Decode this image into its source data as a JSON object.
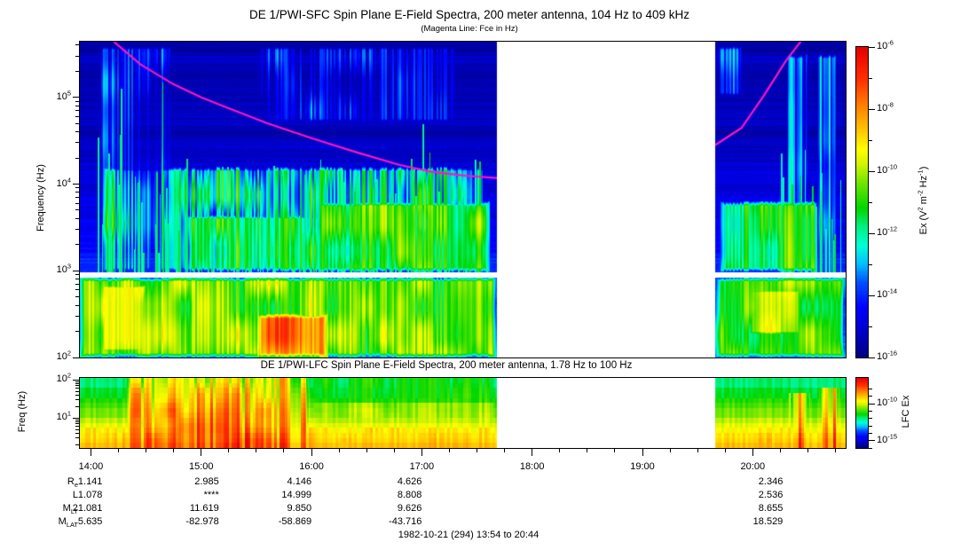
{
  "header": {
    "title": "DE 1/PWI-SFC  Spin Plane E-Field Spectra, 200 meter antenna, 104 Hz to 409 kHz",
    "subtitle": "(Magenta Line: Fce in Hz)"
  },
  "footer": {
    "date_range": "1982-10-21 (294) 13:54 to 20:44"
  },
  "xaxis": {
    "start_hour": 13.9,
    "end_hour": 20.842,
    "first_hour": 14,
    "hour_labels": [
      "14:00",
      "15:00",
      "16:00",
      "17:00",
      "18:00",
      "19:00",
      "20:00"
    ],
    "minor_tick_hours": 0.25
  },
  "ephemeris": {
    "row_labels": [
      {
        "main": "R",
        "sub": "e"
      },
      {
        "main": "L",
        "sub": ""
      },
      {
        "main": "M",
        "sub": "LT"
      },
      {
        "main": "M",
        "sub": "LAT"
      }
    ],
    "rows": [
      [
        "1.141",
        "2.985",
        "4.146",
        "4.626",
        "",
        "",
        "2.346"
      ],
      [
        "1.078",
        "****",
        "14.999",
        "8.808",
        "",
        "",
        "2.536"
      ],
      [
        "21.081",
        "11.619",
        "9.850",
        "9.626",
        "",
        "",
        "8.655"
      ],
      [
        "5.635",
        "-82.978",
        "-58.869",
        "-43.716",
        "",
        "",
        "18.529"
      ]
    ]
  },
  "colors": {
    "magenta": "#ff14c8",
    "frame": "#000000",
    "background": "#ffffff",
    "colormap_stops": [
      [
        0.0,
        0,
        0,
        130
      ],
      [
        0.08,
        0,
        0,
        200
      ],
      [
        0.16,
        0,
        0,
        255
      ],
      [
        0.24,
        0,
        80,
        255
      ],
      [
        0.3,
        0,
        190,
        255
      ],
      [
        0.36,
        0,
        255,
        215
      ],
      [
        0.42,
        0,
        240,
        130
      ],
      [
        0.48,
        0,
        215,
        0
      ],
      [
        0.56,
        110,
        230,
        0
      ],
      [
        0.63,
        220,
        245,
        0
      ],
      [
        0.67,
        255,
        255,
        0
      ],
      [
        0.74,
        255,
        190,
        0
      ],
      [
        0.82,
        255,
        120,
        0
      ],
      [
        0.9,
        255,
        45,
        0
      ],
      [
        1.0,
        230,
        0,
        0
      ]
    ]
  },
  "chart_data": [
    {
      "id": "sfc",
      "type": "heatmap",
      "title": "DE 1/PWI-SFC  Spin Plane E-Field Spectra, 200 meter antenna, 104 Hz to 409 kHz",
      "subtitle": "(Magenta Line: Fce in Hz)",
      "ylabel": "Frequency (Hz)",
      "freq_range": "104 Hz to 409 kHz",
      "ylog_range": [
        2.0,
        5.642
      ],
      "yticks": [
        {
          "log": 2,
          "label": "10^2"
        },
        {
          "log": 3,
          "label": "10^3"
        },
        {
          "log": 4,
          "label": "10^4"
        },
        {
          "log": 5,
          "label": "10^5"
        }
      ],
      "data_gap_hours": [
        17.68,
        19.66
      ],
      "white_band_log_hz": [
        2.925,
        2.985
      ],
      "colorbar": {
        "label": "Ex (V^2 m^-2 Hz^-1)",
        "range_log10": [
          -16,
          -6
        ],
        "ticks": [
          {
            "log": -6,
            "label": "10^-6"
          },
          {
            "log": -8,
            "label": "10^-8"
          },
          {
            "log": -10,
            "label": "10^-10"
          },
          {
            "log": -12,
            "label": "10^-12"
          },
          {
            "log": -14,
            "label": "10^-14"
          },
          {
            "log": -16,
            "label": "10^-16"
          }
        ],
        "minor_logs": [
          -7,
          -9,
          -11,
          -13,
          -15
        ]
      },
      "fce_line": {
        "name": "Fce",
        "color": "#ff14c8",
        "segments": [
          [
            [
              14.21,
              5.64
            ],
            [
              14.45,
              5.38
            ],
            [
              14.75,
              5.15
            ],
            [
              15.0,
              5.0
            ],
            [
              15.3,
              4.85
            ],
            [
              15.6,
              4.7
            ],
            [
              16.0,
              4.53
            ],
            [
              16.4,
              4.37
            ],
            [
              16.8,
              4.22
            ],
            [
              17.1,
              4.14
            ],
            [
              17.4,
              4.095
            ],
            [
              17.68,
              4.07
            ]
          ],
          [
            [
              19.66,
              4.45
            ],
            [
              19.9,
              4.65
            ],
            [
              20.1,
              5.02
            ],
            [
              20.3,
              5.42
            ],
            [
              20.45,
              5.67
            ]
          ]
        ]
      },
      "base_profile": [
        [
          2.0,
          -13.4
        ],
        [
          3.0,
          -14.0
        ],
        [
          3.6,
          -14.7
        ],
        [
          4.6,
          -15.35
        ],
        [
          5.642,
          -15.45
        ]
      ],
      "features": [
        {
          "name": "low-band-left",
          "t": [
            13.9,
            17.68
          ],
          "lf": [
            2.0,
            2.925
          ],
          "v": -10.4,
          "patch": 1.0,
          "stria": 0.7
        },
        {
          "name": "low-band-early-hot",
          "t": [
            14.08,
            14.52
          ],
          "lf": [
            2.05,
            2.85
          ],
          "v": -9.5,
          "patch": 0.7,
          "stria": 0.4
        },
        {
          "name": "low-band-hot-core",
          "t": [
            15.5,
            16.15
          ],
          "lf": [
            2.0,
            2.5
          ],
          "v": -7.9,
          "patch": 0.9,
          "stria": 0.6
        },
        {
          "name": "hiss-columns",
          "t": [
            14.1,
            17.6
          ],
          "lf": [
            2.985,
            4.2
          ],
          "v": -12.8,
          "patch": 1.3,
          "stria": 1.5
        },
        {
          "name": "hiss-dense-late",
          "t": [
            16.05,
            17.62
          ],
          "lf": [
            2.985,
            3.8
          ],
          "v": -11.0,
          "patch": 0.9,
          "stria": 0.7
        },
        {
          "name": "hiss-mid",
          "t": [
            14.85,
            16.1
          ],
          "lf": [
            2.985,
            3.65
          ],
          "v": -11.6,
          "patch": 1.0,
          "stria": 0.9
        },
        {
          "name": "band-30khz",
          "t": [
            13.9,
            17.68
          ],
          "lf": [
            4.4,
            4.46
          ],
          "v": -13.5,
          "patch": 0.3,
          "stria": 0.3
        },
        {
          "name": "upper-wisps",
          "t": [
            15.5,
            17.35
          ],
          "lf": [
            4.7,
            5.6
          ],
          "v": -15.0,
          "patch": 0.9,
          "stria": 1.3
        },
        {
          "name": "early-streaks",
          "t": [
            14.05,
            14.75
          ],
          "lf": [
            3.6,
            5.6
          ],
          "v": -14.6,
          "patch": 0.9,
          "stria": 1.4
        },
        {
          "name": "low-band-right",
          "t": [
            19.66,
            20.84
          ],
          "lf": [
            2.0,
            2.925
          ],
          "v": -10.7,
          "patch": 0.9,
          "stria": 0.5
        },
        {
          "name": "right-hot",
          "t": [
            19.95,
            20.45
          ],
          "lf": [
            2.25,
            2.8
          ],
          "v": -9.8,
          "patch": 0.7,
          "stria": 0.4
        },
        {
          "name": "right-mid-green",
          "t": [
            19.7,
            20.6
          ],
          "lf": [
            2.985,
            3.8
          ],
          "v": -11.5,
          "patch": 1.0,
          "stria": 0.8
        },
        {
          "name": "right-streaks",
          "t": [
            20.3,
            20.5
          ],
          "lf": [
            2.2,
            5.5
          ],
          "v": -13.4,
          "patch": 0.6,
          "stria": 1.6
        },
        {
          "name": "right-streaks-2",
          "t": [
            20.56,
            20.78
          ],
          "lf": [
            2.2,
            5.5
          ],
          "v": -13.2,
          "patch": 0.6,
          "stria": 1.6
        },
        {
          "name": "right-top-wisp",
          "t": [
            19.66,
            19.92
          ],
          "lf": [
            5.0,
            5.6
          ],
          "v": -14.0,
          "patch": 0.8,
          "stria": 1.0
        }
      ]
    },
    {
      "id": "lfc",
      "type": "heatmap",
      "title": "DE 1/PWI-LFC  Spin Plane E-Field Spectra, 200 meter antenna, 1.78 Hz to 100 Hz",
      "ylabel": "Freq (Hz)",
      "freq_range": "1.78 Hz to 100 Hz",
      "ylog_range": [
        0.21,
        2.05
      ],
      "yticks": [
        {
          "log": 1,
          "label": "10^1"
        },
        {
          "log": 2,
          "label": "10^2"
        }
      ],
      "channels": 14,
      "data_gap_hours": [
        17.68,
        19.66
      ],
      "colorbar": {
        "label": "LFC Ex",
        "range_log10": [
          -16,
          -6.5
        ],
        "ticks": [
          {
            "log": -10,
            "label": "10^-10"
          },
          {
            "log": -15,
            "label": "10^-15"
          }
        ],
        "minor_logs": [
          -8,
          -9,
          -11,
          -12,
          -13,
          -14,
          -16
        ]
      },
      "base_profile": [
        [
          0.21,
          -9.0
        ],
        [
          0.7,
          -9.7
        ],
        [
          1.2,
          -10.8
        ],
        [
          1.6,
          -11.5
        ],
        [
          2.05,
          -12.1
        ]
      ],
      "features": [
        {
          "name": "storm-red",
          "t": [
            14.32,
            15.98
          ],
          "lf": [
            0.21,
            2.05
          ],
          "v": -7.8,
          "tilt": 1.1,
          "patch": 0.6,
          "stria": 1.3
        },
        {
          "name": "bottom-orange",
          "t": [
            13.9,
            17.68
          ],
          "lf": [
            0.21,
            0.8
          ],
          "v": -9.1,
          "tilt": 0.8,
          "patch": 0.4,
          "stria": 0.5
        },
        {
          "name": "yellow-layer",
          "t": [
            15.98,
            17.68
          ],
          "lf": [
            0.45,
            1.35
          ],
          "v": -9.9,
          "tilt": 0.7,
          "patch": 0.4,
          "stria": 0.4
        },
        {
          "name": "green-top",
          "t": [
            15.98,
            17.68
          ],
          "lf": [
            1.3,
            2.05
          ],
          "v": -11.3,
          "tilt": 0.3,
          "patch": 0.4,
          "stria": 0.4
        },
        {
          "name": "right-bottom",
          "t": [
            19.66,
            20.84
          ],
          "lf": [
            0.21,
            0.7
          ],
          "v": -9.5,
          "tilt": 0.7,
          "patch": 0.4,
          "stria": 0.6
        },
        {
          "name": "right-red-streaks",
          "t": [
            20.33,
            20.52
          ],
          "lf": [
            0.21,
            1.7
          ],
          "v": -8.2,
          "tilt": 0.9,
          "patch": 0.5,
          "stria": 1.5
        },
        {
          "name": "right-red-streaks-2",
          "t": [
            20.6,
            20.79
          ],
          "lf": [
            0.21,
            1.8
          ],
          "v": -8.1,
          "tilt": 0.9,
          "patch": 0.5,
          "stria": 1.5
        }
      ]
    }
  ]
}
